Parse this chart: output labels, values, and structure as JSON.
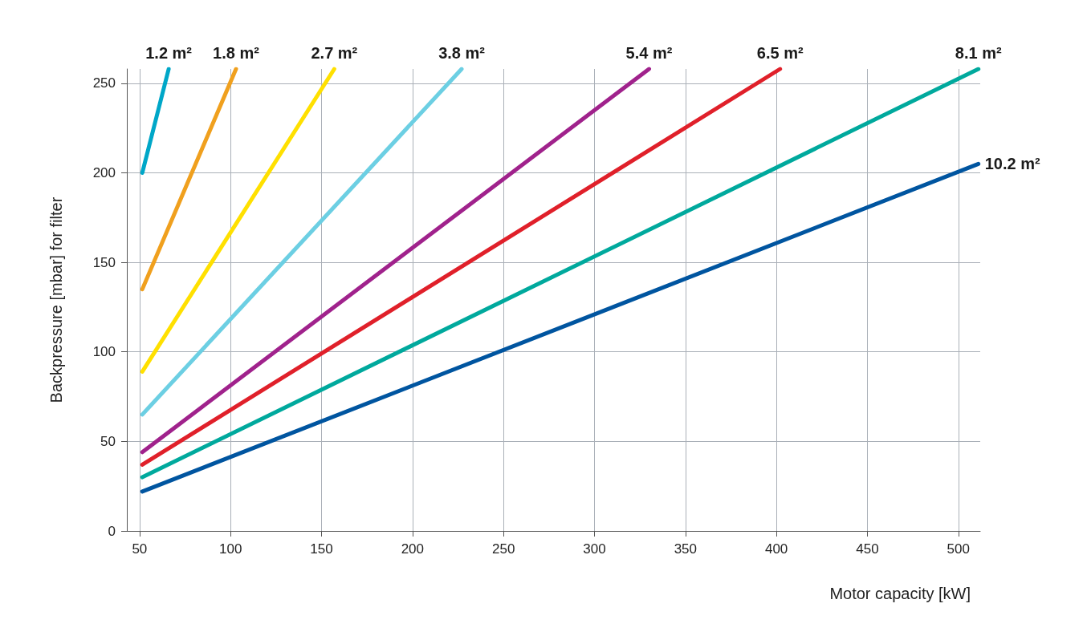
{
  "chart_data": {
    "type": "line",
    "xlabel": "Motor capacity [kW]",
    "ylabel": "Backpressure [mbar] for filter",
    "xlim": [
      43,
      512
    ],
    "xticks": [
      50,
      100,
      150,
      200,
      250,
      300,
      350,
      400,
      450,
      500
    ],
    "ylim": [
      0,
      258
    ],
    "yticks": [
      0,
      50,
      100,
      150,
      200,
      250
    ],
    "grid": true,
    "legend": false,
    "marker": "none",
    "line_style": "solid",
    "series": [
      {
        "name": "1.2 m²",
        "color": "#00a7c8",
        "x": [
          51.5,
          66
        ],
        "values": [
          200,
          258
        ]
      },
      {
        "name": "1.8 m²",
        "color": "#f0a01e",
        "x": [
          51.5,
          103
        ],
        "values": [
          135,
          258
        ]
      },
      {
        "name": "2.7 m²",
        "color": "#ffe000",
        "x": [
          51.5,
          157
        ],
        "values": [
          89,
          258
        ]
      },
      {
        "name": "3.8 m²",
        "color": "#6ccfe3",
        "x": [
          51.5,
          227
        ],
        "values": [
          65,
          258
        ]
      },
      {
        "name": "5.4 m²",
        "color": "#a0228c",
        "x": [
          51.5,
          330
        ],
        "values": [
          44,
          258
        ]
      },
      {
        "name": "6.5 m²",
        "color": "#e0202a",
        "x": [
          51.5,
          402
        ],
        "values": [
          37,
          258
        ]
      },
      {
        "name": "8.1 m²",
        "color": "#00a99d",
        "x": [
          51.5,
          511
        ],
        "values": [
          30,
          258
        ]
      },
      {
        "name": "10.2 m²",
        "color": "#0055a0",
        "x": [
          51.5,
          511
        ],
        "values": [
          22,
          205
        ]
      }
    ]
  }
}
